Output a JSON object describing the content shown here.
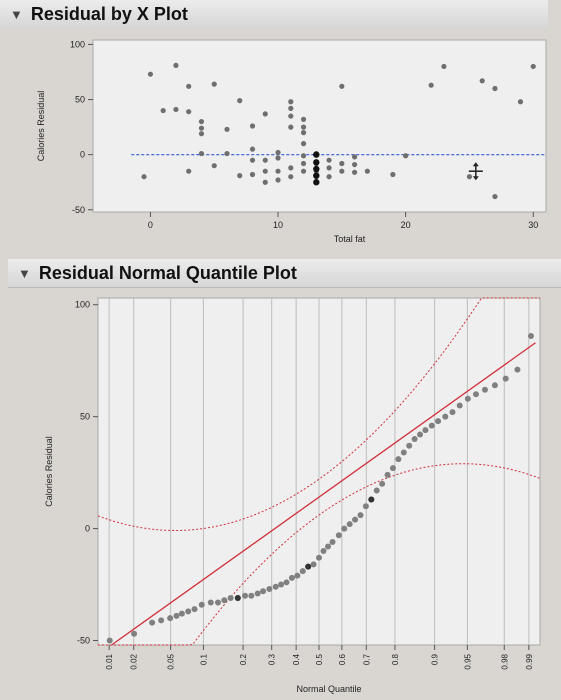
{
  "panels": {
    "residual_by_x": {
      "title": "Residual by X Plot"
    },
    "normal_quantile": {
      "title": "Residual Normal Quantile Plot"
    }
  },
  "chart_data": [
    {
      "type": "scatter",
      "title": "Residual by X Plot",
      "xlabel": "Total fat",
      "ylabel": "Calories Residual",
      "xlim": [
        -4.5,
        31
      ],
      "ylim": [
        -52,
        104
      ],
      "xticks": [
        0,
        10,
        20,
        30
      ],
      "yticks": [
        100,
        50,
        0,
        -50
      ],
      "grid": false,
      "reference_line": {
        "y": 0,
        "style": "dashed",
        "color": "#2f5bd6"
      },
      "points": [
        [
          2,
          81
        ],
        [
          0,
          73
        ],
        [
          3,
          62
        ],
        [
          5,
          64
        ],
        [
          1,
          40
        ],
        [
          2,
          41
        ],
        [
          3,
          39
        ],
        [
          4,
          30
        ],
        [
          4,
          24
        ],
        [
          4,
          19
        ],
        [
          4,
          1
        ],
        [
          3,
          -15
        ],
        [
          -0.5,
          -20
        ],
        [
          7,
          49
        ],
        [
          6,
          23
        ],
        [
          6,
          1
        ],
        [
          5,
          -10
        ],
        [
          7,
          -19
        ],
        [
          8,
          5
        ],
        [
          8,
          -5
        ],
        [
          8,
          -18
        ],
        [
          9,
          -5
        ],
        [
          9,
          -15
        ],
        [
          9,
          -25
        ],
        [
          8,
          26
        ],
        [
          9,
          37
        ],
        [
          11,
          48
        ],
        [
          11,
          42
        ],
        [
          11,
          35
        ],
        [
          11,
          25
        ],
        [
          10,
          2
        ],
        [
          10,
          -3
        ],
        [
          10,
          -15
        ],
        [
          10,
          -23
        ],
        [
          12,
          32
        ],
        [
          12,
          25
        ],
        [
          12,
          20
        ],
        [
          12,
          10
        ],
        [
          12,
          -1
        ],
        [
          12,
          -8
        ],
        [
          12,
          -15
        ],
        [
          11,
          -12
        ],
        [
          11,
          -20
        ],
        [
          13,
          1
        ],
        [
          13,
          -8
        ],
        [
          13,
          -15
        ],
        [
          13,
          -20
        ],
        [
          14,
          -5
        ],
        [
          14,
          -12
        ],
        [
          14,
          -20
        ],
        [
          15,
          -8
        ],
        [
          15,
          -15
        ],
        [
          16,
          -2
        ],
        [
          16,
          -9
        ],
        [
          16,
          -16
        ],
        [
          15,
          62
        ],
        [
          17,
          -15
        ],
        [
          19,
          -18
        ],
        [
          20,
          -1
        ],
        [
          22,
          63
        ],
        [
          23,
          80
        ],
        [
          26,
          67
        ],
        [
          25,
          -20
        ],
        [
          27,
          60
        ],
        [
          29,
          48
        ],
        [
          30,
          80
        ],
        [
          27,
          -38
        ]
      ],
      "highlighted_points": [
        [
          13,
          0
        ],
        [
          13,
          -7
        ],
        [
          13,
          -13
        ],
        [
          13,
          -19
        ],
        [
          13,
          -25
        ]
      ]
    },
    {
      "type": "scatter",
      "title": "Residual Normal Quantile Plot",
      "xlabel": "Normal Quantile",
      "ylabel": "Calories Residual",
      "ylim": [
        -52,
        103
      ],
      "yticks": [
        100,
        50,
        0,
        -50
      ],
      "xticks": [
        0.01,
        0.02,
        0.05,
        0.1,
        0.2,
        0.3,
        0.4,
        0.5,
        0.6,
        0.7,
        0.8,
        0.9,
        0.95,
        0.98,
        0.99
      ],
      "grid": true,
      "fit_line": {
        "color": "#d0303a",
        "from": [
          -2.3,
          -52
        ],
        "to": [
          2.4,
          83
        ]
      },
      "confidence_bands": {
        "color": "#d0303a",
        "style": "dashed"
      },
      "points": [
        [
          -2.32,
          -50
        ],
        [
          -2.05,
          -47
        ],
        [
          -1.85,
          -42
        ],
        [
          -1.75,
          -41
        ],
        [
          -1.65,
          -40
        ],
        [
          -1.58,
          -39
        ],
        [
          -1.52,
          -38
        ],
        [
          -1.45,
          -37
        ],
        [
          -1.38,
          -36
        ],
        [
          -1.3,
          -34
        ],
        [
          -1.2,
          -33
        ],
        [
          -1.12,
          -33
        ],
        [
          -1.05,
          -32
        ],
        [
          -0.98,
          -31
        ],
        [
          -0.9,
          -31
        ],
        [
          -0.82,
          -30
        ],
        [
          -0.75,
          -30
        ],
        [
          -0.68,
          -29
        ],
        [
          -0.62,
          -28
        ],
        [
          -0.55,
          -27
        ],
        [
          -0.48,
          -26
        ],
        [
          -0.42,
          -25
        ],
        [
          -0.36,
          -24
        ],
        [
          -0.3,
          -22
        ],
        [
          -0.24,
          -21
        ],
        [
          -0.18,
          -19
        ],
        [
          -0.12,
          -17
        ],
        [
          -0.06,
          -16
        ],
        [
          0.0,
          -13
        ],
        [
          0.05,
          -10
        ],
        [
          0.1,
          -8
        ],
        [
          0.15,
          -6
        ],
        [
          0.22,
          -3
        ],
        [
          0.28,
          0
        ],
        [
          0.34,
          2
        ],
        [
          0.4,
          4
        ],
        [
          0.46,
          6
        ],
        [
          0.52,
          10
        ],
        [
          0.58,
          13
        ],
        [
          0.64,
          17
        ],
        [
          0.7,
          20
        ],
        [
          0.76,
          24
        ],
        [
          0.82,
          27
        ],
        [
          0.88,
          31
        ],
        [
          0.94,
          34
        ],
        [
          1.0,
          37
        ],
        [
          1.06,
          40
        ],
        [
          1.12,
          42
        ],
        [
          1.18,
          44
        ],
        [
          1.25,
          46
        ],
        [
          1.32,
          48
        ],
        [
          1.4,
          50
        ],
        [
          1.48,
          52
        ],
        [
          1.56,
          55
        ],
        [
          1.65,
          58
        ],
        [
          1.74,
          60
        ],
        [
          1.84,
          62
        ],
        [
          1.95,
          64
        ],
        [
          2.07,
          67
        ],
        [
          2.2,
          71
        ],
        [
          2.35,
          86
        ]
      ],
      "highlighted_points": [
        [
          -0.9,
          -31
        ],
        [
          -0.12,
          -17
        ],
        [
          0.58,
          13
        ]
      ]
    }
  ]
}
